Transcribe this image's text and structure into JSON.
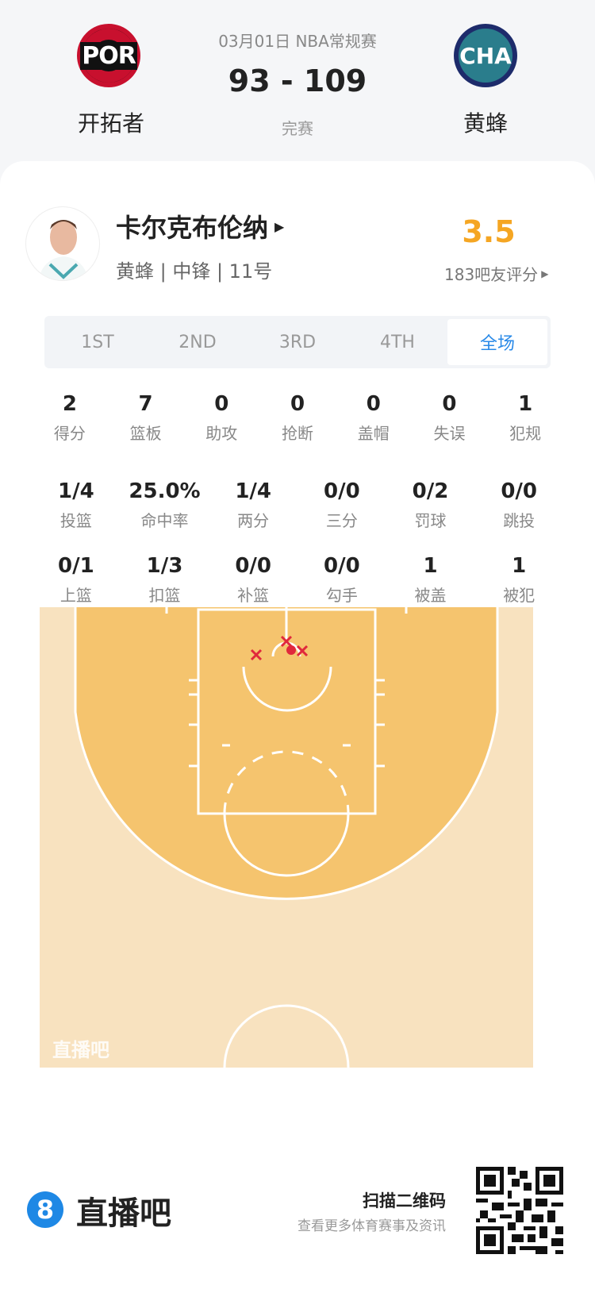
{
  "game": {
    "date_league": "03月01日 NBA常规赛",
    "score": "93 - 109",
    "status": "完赛",
    "home": {
      "abbr": "POR",
      "name": "开拓者"
    },
    "away": {
      "abbr": "CHA",
      "name": "黄蜂"
    }
  },
  "player": {
    "name": "卡尔克布伦纳",
    "meta": "黄蜂 | 中锋 | 11号",
    "rating": "3.5",
    "rating_count": "183吧友评分",
    "rating_color": "#f5a623"
  },
  "tabs": [
    "1ST",
    "2ND",
    "3RD",
    "4TH",
    "全场"
  ],
  "active_tab": "全场",
  "stats_row1": [
    {
      "v": "2",
      "l": "得分"
    },
    {
      "v": "7",
      "l": "篮板"
    },
    {
      "v": "0",
      "l": "助攻"
    },
    {
      "v": "0",
      "l": "抢断"
    },
    {
      "v": "0",
      "l": "盖帽"
    },
    {
      "v": "0",
      "l": "失误"
    },
    {
      "v": "1",
      "l": "犯规"
    }
  ],
  "stats_row2": [
    {
      "v": "1/4",
      "l": "投篮"
    },
    {
      "v": "25.0%",
      "l": "命中率"
    },
    {
      "v": "1/4",
      "l": "两分"
    },
    {
      "v": "0/0",
      "l": "三分"
    },
    {
      "v": "0/2",
      "l": "罚球"
    },
    {
      "v": "0/0",
      "l": "跳投"
    }
  ],
  "stats_row3": [
    {
      "v": "0/1",
      "l": "上篮"
    },
    {
      "v": "1/3",
      "l": "扣篮"
    },
    {
      "v": "0/0",
      "l": "补篮"
    },
    {
      "v": "0/0",
      "l": "勾手"
    },
    {
      "v": "1",
      "l": "被盖"
    },
    {
      "v": "1",
      "l": "被犯"
    }
  ],
  "court": {
    "watermark": "直播吧",
    "made_color": "#e0283c",
    "missed_color": "#e0283c",
    "made_count": 1,
    "missed_count": 3
  },
  "footer": {
    "brand": "直播吧",
    "brand_icon": "8",
    "scan": "扫描二维码",
    "scan_sub": "查看更多体育赛事及资讯"
  }
}
